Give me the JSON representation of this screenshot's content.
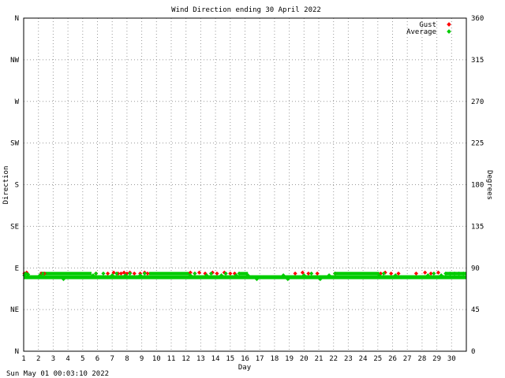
{
  "chart_data": {
    "type": "scatter",
    "title": "Wind Direction ending 30 April 2022",
    "xlabel": "Day",
    "ylabel_left": "Direction",
    "ylabel_right": "Degrees",
    "footer": "Sun May 01 00:03:10 2022",
    "xlim": [
      1,
      31
    ],
    "ylim": [
      0,
      360
    ],
    "x_ticks": [
      "1",
      "2",
      "3",
      "4",
      "5",
      "6",
      "7",
      "8",
      "9",
      "10",
      "11",
      "12",
      "13",
      "14",
      "15",
      "16",
      "17",
      "18",
      "19",
      "20",
      "21",
      "22",
      "23",
      "24",
      "25",
      "26",
      "27",
      "28",
      "29",
      "30"
    ],
    "y_ticks_left": [
      {
        "value": 0,
        "label": "N"
      },
      {
        "value": 45,
        "label": "NE"
      },
      {
        "value": 90,
        "label": "E"
      },
      {
        "value": 135,
        "label": "SE"
      },
      {
        "value": 180,
        "label": "S"
      },
      {
        "value": 225,
        "label": "SW"
      },
      {
        "value": 270,
        "label": "W"
      },
      {
        "value": 315,
        "label": "NW"
      },
      {
        "value": 360,
        "label": "N"
      }
    ],
    "y_ticks_right": [
      0,
      45,
      90,
      135,
      180,
      225,
      270,
      315,
      360
    ],
    "grid": true,
    "legend_position": "top-right",
    "series": [
      {
        "name": "Gust",
        "color": "#ff0000",
        "points": [
          [
            1.05,
            84
          ],
          [
            1.2,
            85
          ],
          [
            2.2,
            84
          ],
          [
            2.4,
            84
          ],
          [
            5.9,
            84
          ],
          [
            6.7,
            84
          ],
          [
            7.1,
            85
          ],
          [
            7.4,
            84
          ],
          [
            7.6,
            84
          ],
          [
            7.8,
            85
          ],
          [
            8.0,
            84
          ],
          [
            8.2,
            85
          ],
          [
            8.5,
            84
          ],
          [
            8.9,
            84
          ],
          [
            9.2,
            85
          ],
          [
            9.4,
            84
          ],
          [
            12.3,
            85
          ],
          [
            12.6,
            84
          ],
          [
            12.9,
            85
          ],
          [
            13.3,
            84
          ],
          [
            13.8,
            85
          ],
          [
            14.1,
            84
          ],
          [
            14.6,
            85
          ],
          [
            15.0,
            84
          ],
          [
            15.3,
            84
          ],
          [
            19.4,
            84
          ],
          [
            19.9,
            85
          ],
          [
            20.3,
            84
          ],
          [
            20.9,
            84
          ],
          [
            22.1,
            84
          ],
          [
            25.2,
            84
          ],
          [
            25.5,
            85
          ],
          [
            25.9,
            84
          ],
          [
            26.4,
            84
          ],
          [
            27.6,
            84
          ],
          [
            28.2,
            85
          ],
          [
            28.6,
            84
          ],
          [
            29.1,
            85
          ]
        ]
      },
      {
        "name": "Average",
        "color": "#00cc00",
        "points": [
          [
            1.05,
            82
          ],
          [
            1.15,
            84
          ],
          [
            1.3,
            83
          ],
          [
            1.5,
            80
          ],
          [
            2.1,
            82
          ],
          [
            2.3,
            84
          ],
          [
            2.5,
            80
          ],
          [
            3.7,
            78
          ],
          [
            5.7,
            82
          ],
          [
            5.9,
            84
          ],
          [
            6.1,
            80
          ],
          [
            6.4,
            84
          ],
          [
            6.7,
            80
          ],
          [
            7.0,
            82
          ],
          [
            7.3,
            84
          ],
          [
            7.6,
            80
          ],
          [
            7.9,
            82
          ],
          [
            8.2,
            84
          ],
          [
            8.6,
            80
          ],
          [
            8.9,
            82
          ],
          [
            9.2,
            84
          ],
          [
            9.5,
            80
          ],
          [
            12.3,
            82
          ],
          [
            12.6,
            84
          ],
          [
            13.0,
            80
          ],
          [
            13.4,
            82
          ],
          [
            13.7,
            84
          ],
          [
            14.1,
            80
          ],
          [
            14.4,
            82
          ],
          [
            14.7,
            84
          ],
          [
            15.1,
            80
          ],
          [
            15.4,
            82
          ],
          [
            15.6,
            84
          ],
          [
            16.2,
            82
          ],
          [
            16.5,
            80
          ],
          [
            16.8,
            78
          ],
          [
            17.3,
            80
          ],
          [
            18.0,
            80
          ],
          [
            18.6,
            82
          ],
          [
            18.9,
            78
          ],
          [
            19.5,
            80
          ],
          [
            20.0,
            82
          ],
          [
            20.5,
            84
          ],
          [
            20.8,
            80
          ],
          [
            21.1,
            78
          ],
          [
            21.4,
            80
          ],
          [
            21.7,
            82
          ],
          [
            22.1,
            84
          ],
          [
            25.1,
            82
          ],
          [
            25.4,
            84
          ],
          [
            25.8,
            80
          ],
          [
            26.2,
            82
          ],
          [
            26.6,
            80
          ],
          [
            27.2,
            80
          ],
          [
            27.8,
            80
          ],
          [
            28.4,
            82
          ],
          [
            28.8,
            84
          ],
          [
            29.0,
            80
          ],
          [
            29.3,
            82
          ],
          [
            29.6,
            84
          ],
          [
            29.9,
            84
          ],
          [
            30.2,
            84
          ],
          [
            30.5,
            84
          ],
          [
            30.8,
            84
          ]
        ]
      }
    ],
    "legend": [
      {
        "label": "Gust",
        "color": "#ff0000"
      },
      {
        "label": "Average",
        "color": "#00cc00"
      }
    ]
  }
}
